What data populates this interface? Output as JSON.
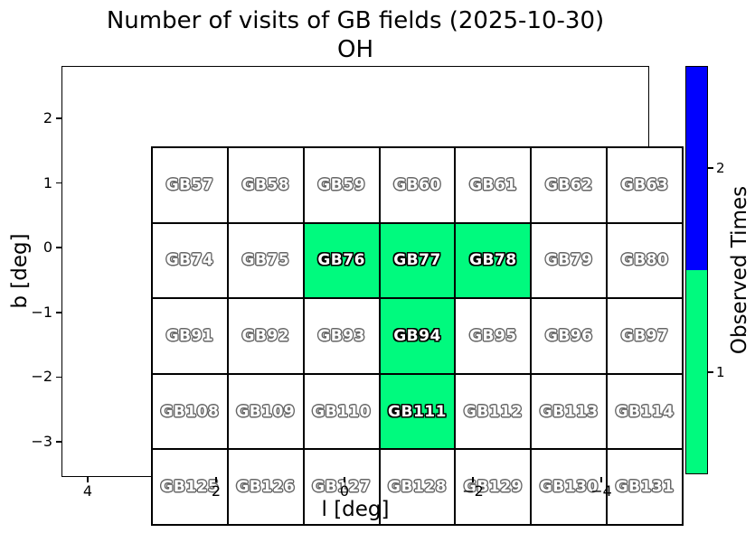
{
  "title": {
    "line1": "Number of visits of GB fields (2025-10-30)",
    "line2": "OH"
  },
  "x_axis": {
    "label": "l [deg]",
    "ticks": [
      "4",
      "2",
      "0",
      "−2",
      "−4"
    ]
  },
  "y_axis": {
    "label": "b [deg]",
    "ticks": [
      "2",
      "1",
      "0",
      "−1",
      "−2",
      "−3"
    ]
  },
  "colorbar": {
    "label": "Observed Times",
    "tick_top": "2",
    "tick_bottom": "1",
    "color_top": "#0000ff",
    "color_bottom": "#00fa7e"
  },
  "colors": {
    "observed_cell": "#00fa7e",
    "unobserved_cell": "#ffffff",
    "grid_line": "#000000"
  },
  "chart_data": {
    "type": "heatmap",
    "title": "Number of visits of GB fields (2025-10-30) OH",
    "xlabel": "l [deg]",
    "ylabel": "b [deg]",
    "x_tick_values": [
      4,
      2,
      0,
      -2,
      -4
    ],
    "x_axis_reversed": true,
    "y_tick_values": [
      2,
      1,
      0,
      -1,
      -2,
      -3
    ],
    "legend": {
      "label": "Observed Times",
      "value_colors": {
        "1": "#00fa7e",
        "2": "#0000ff"
      }
    },
    "rows": [
      {
        "cells": [
          {
            "label": "GB57",
            "visits": 0
          },
          {
            "label": "GB58",
            "visits": 0
          },
          {
            "label": "GB59",
            "visits": 0
          },
          {
            "label": "GB60",
            "visits": 0
          },
          {
            "label": "GB61",
            "visits": 0
          },
          {
            "label": "GB62",
            "visits": 0
          },
          {
            "label": "GB63",
            "visits": 0
          }
        ]
      },
      {
        "cells": [
          {
            "label": "GB74",
            "visits": 0
          },
          {
            "label": "GB75",
            "visits": 0
          },
          {
            "label": "GB76",
            "visits": 1
          },
          {
            "label": "GB77",
            "visits": 1
          },
          {
            "label": "GB78",
            "visits": 1
          },
          {
            "label": "GB79",
            "visits": 0
          },
          {
            "label": "GB80",
            "visits": 0
          }
        ]
      },
      {
        "cells": [
          {
            "label": "GB91",
            "visits": 0
          },
          {
            "label": "GB92",
            "visits": 0
          },
          {
            "label": "GB93",
            "visits": 0
          },
          {
            "label": "GB94",
            "visits": 1
          },
          {
            "label": "GB95",
            "visits": 0
          },
          {
            "label": "GB96",
            "visits": 0
          },
          {
            "label": "GB97",
            "visits": 0
          }
        ]
      },
      {
        "cells": [
          {
            "label": "GB108",
            "visits": 0
          },
          {
            "label": "GB109",
            "visits": 0
          },
          {
            "label": "GB110",
            "visits": 0
          },
          {
            "label": "GB111",
            "visits": 1
          },
          {
            "label": "GB112",
            "visits": 0
          },
          {
            "label": "GB113",
            "visits": 0
          },
          {
            "label": "GB114",
            "visits": 0
          }
        ]
      },
      {
        "cells": [
          {
            "label": "GB125",
            "visits": 0
          },
          {
            "label": "GB126",
            "visits": 0
          },
          {
            "label": "GB127",
            "visits": 0
          },
          {
            "label": "GB128",
            "visits": 0
          },
          {
            "label": "GB129",
            "visits": 0
          },
          {
            "label": "GB130",
            "visits": 0
          },
          {
            "label": "GB131",
            "visits": 0
          }
        ]
      }
    ]
  }
}
